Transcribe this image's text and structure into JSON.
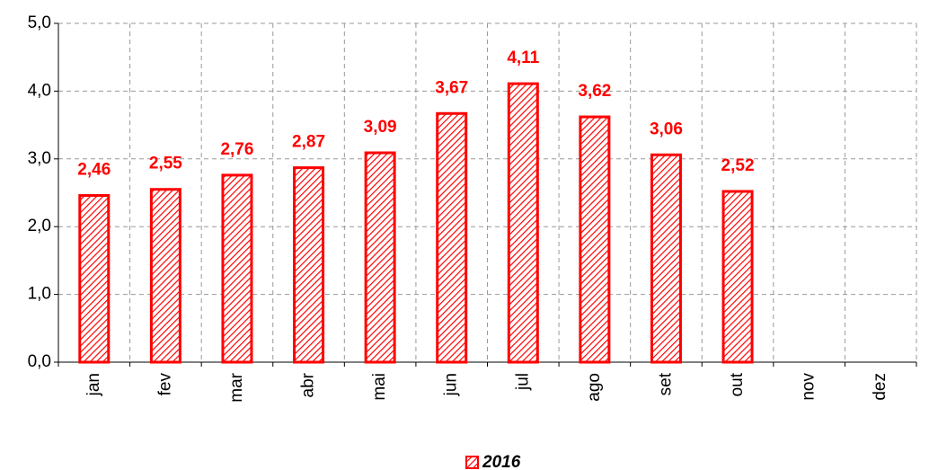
{
  "chart_data": {
    "type": "bar",
    "categories": [
      "jan",
      "fev",
      "mar",
      "abr",
      "mai",
      "jun",
      "jul",
      "ago",
      "set",
      "out",
      "nov",
      "dez"
    ],
    "series": [
      {
        "name": "2016",
        "color": "#ff0000",
        "values": [
          2.46,
          2.55,
          2.76,
          2.87,
          3.09,
          3.67,
          4.11,
          3.62,
          3.06,
          2.52,
          null,
          null
        ],
        "value_labels": [
          "2,46",
          "2,55",
          "2,76",
          "2,87",
          "3,09",
          "3,67",
          "4,11",
          "3,62",
          "3,06",
          "2,52",
          null,
          null
        ]
      }
    ],
    "ylim": [
      0,
      5
    ],
    "yticks": [
      {
        "value": 0,
        "label": "0,0"
      },
      {
        "value": 1,
        "label": "1,0"
      },
      {
        "value": 2,
        "label": "2,0"
      },
      {
        "value": 3,
        "label": "3,0"
      },
      {
        "value": 4,
        "label": "4,0"
      },
      {
        "value": 5,
        "label": "5,0"
      }
    ],
    "grid": true,
    "legend": "bottom"
  }
}
